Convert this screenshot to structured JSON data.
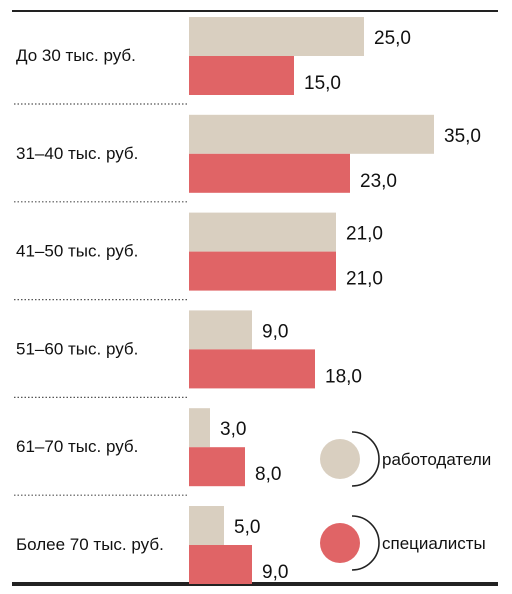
{
  "chart_data": {
    "type": "bar",
    "orientation": "horizontal",
    "categories": [
      "До 30 тыс. руб.",
      "31–40 тыс. руб.",
      "41–50 тыс. руб.",
      "51–60 тыс. руб.",
      "61–70 тыс. руб.",
      "Более 70 тыс. руб."
    ],
    "series": [
      {
        "name": "работодатели",
        "color": "#d9cfc0",
        "values": [
          25.0,
          35.0,
          21.0,
          9.0,
          3.0,
          5.0
        ]
      },
      {
        "name": "специалисты",
        "color": "#e06466",
        "values": [
          15.0,
          23.0,
          21.0,
          18.0,
          8.0,
          9.0
        ]
      }
    ],
    "value_labels": [
      [
        "25,0",
        "35,0",
        "21,0",
        "9,0",
        "3,0",
        "5,0"
      ],
      [
        "15,0",
        "23,0",
        "21,0",
        "18,0",
        "8,0",
        "9,0"
      ]
    ],
    "xlim": [
      0,
      35
    ],
    "grid": false,
    "legend_position": "bottom-right"
  }
}
